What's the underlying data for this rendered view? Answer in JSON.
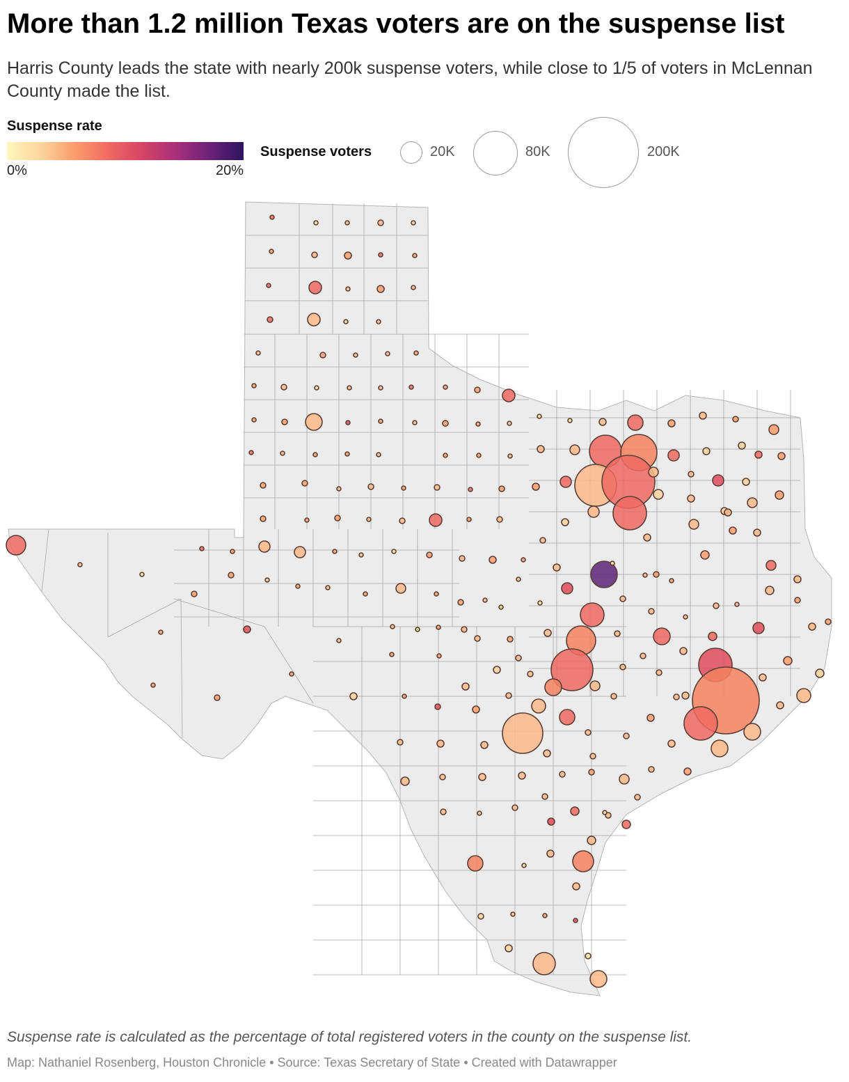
{
  "header": {
    "title": "More than 1.2 million Texas voters are on the suspense list",
    "subtitle": "Harris County leads the state with nearly 200k suspense voters, while close to 1/5 of voters in McLennan County made the list."
  },
  "legend": {
    "color": {
      "label": "Suspense rate",
      "min_label": "0%",
      "max_label": "20%",
      "scale_colors": [
        "#fff7bc",
        "#fdd49e",
        "#fc9d6b",
        "#f06a63",
        "#d44565",
        "#a8307c",
        "#6b2278",
        "#2d1460"
      ]
    },
    "size": {
      "label": "Suspense voters",
      "items": [
        {
          "label": "20K",
          "value": 20000
        },
        {
          "label": "80K",
          "value": 80000
        },
        {
          "label": "200K",
          "value": 200000
        }
      ]
    }
  },
  "map": {
    "region": "Texas",
    "state_fill": "#ececec",
    "county_line": "#a8a8a8",
    "bubble_stroke": "#5a3e36",
    "encoding": {
      "size": "suspense voters",
      "color": "suspense rate"
    }
  },
  "footer": {
    "note": "Suspense rate is calculated as the percentage of total registered voters in the county on the suspense list.",
    "credit": "Map: Nathaniel Rosenberg, Houston Chronicle • Source: Texas Secretary of State • Created with Datawrapper"
  }
}
